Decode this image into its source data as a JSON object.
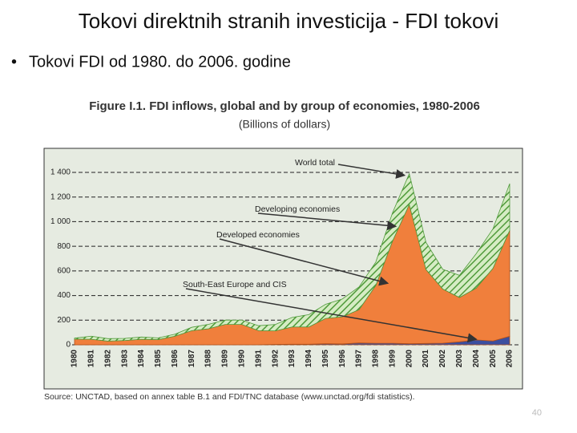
{
  "slide": {
    "title": "Tokovi direktnih stranih investicija - FDI tokovi",
    "bullet": "Tokovi FDI od 1980. do 2006. godine",
    "page_number": "40"
  },
  "chart_data": {
    "type": "stacked-area",
    "title": "Figure I.1. FDI inflows, global and by group of economies, 1980-2006",
    "subtitle": "(Billions of dollars)",
    "source": "Source: UNCTAD, based on annex table B.1 and FDI/TNC database (www.unctad.org/fdi statistics).",
    "categories": [
      "1980",
      "1981",
      "1982",
      "1983",
      "1984",
      "1985",
      "1986",
      "1987",
      "1988",
      "1989",
      "1990",
      "1991",
      "1992",
      "1993",
      "1994",
      "1995",
      "1996",
      "1997",
      "1998",
      "1999",
      "2000",
      "2001",
      "2002",
      "2003",
      "2004",
      "2005",
      "2006"
    ],
    "series": [
      {
        "name": "South-East Europe and CIS",
        "color": "#3b4fa0",
        "values": [
          0,
          0,
          0,
          0,
          0,
          0,
          0,
          0,
          0,
          0,
          0,
          0,
          3,
          5,
          5,
          9,
          7,
          15,
          12,
          12,
          9,
          11,
          13,
          24,
          40,
          31,
          69
        ]
      },
      {
        "name": "Developed economies",
        "color": "#f07f3c",
        "values": [
          46,
          45,
          30,
          35,
          45,
          42,
          70,
          115,
          130,
          165,
          165,
          115,
          110,
          140,
          140,
          205,
          220,
          270,
          470,
          830,
          1130,
          600,
          440,
          360,
          420,
          590,
          860
        ]
      },
      {
        "name": "Developing economies",
        "color": "#8cc46a",
        "values": [
          8,
          25,
          20,
          17,
          18,
          14,
          16,
          27,
          36,
          36,
          35,
          40,
          52,
          77,
          100,
          115,
          145,
          185,
          190,
          230,
          250,
          220,
          160,
          180,
          280,
          320,
          380
        ]
      }
    ],
    "annotations": [
      "World total"
    ],
    "ylim": [
      0,
      1400
    ],
    "yticks": [
      0,
      200,
      400,
      600,
      800,
      {
        "value": 1000,
        "label": "1 000"
      },
      {
        "value": 1200,
        "label": "1 200"
      },
      {
        "value": 1400,
        "label": "1 400"
      }
    ],
    "grid": true
  }
}
